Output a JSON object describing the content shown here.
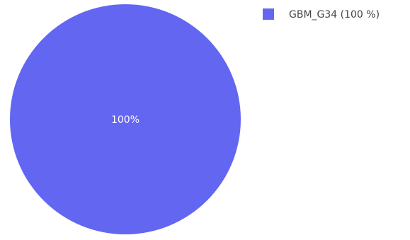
{
  "chart_data": {
    "type": "pie",
    "slices": [
      {
        "label": "GBM_G34",
        "value": 100,
        "text_label": "100%",
        "legend_label": "GBM_G34 (100 %)",
        "color": "#6366f1"
      }
    ],
    "legend_position": "top-right",
    "title": ""
  },
  "colors": {
    "background": "#ffffff",
    "slice_label": "#ffffff",
    "legend_text": "#444444"
  }
}
